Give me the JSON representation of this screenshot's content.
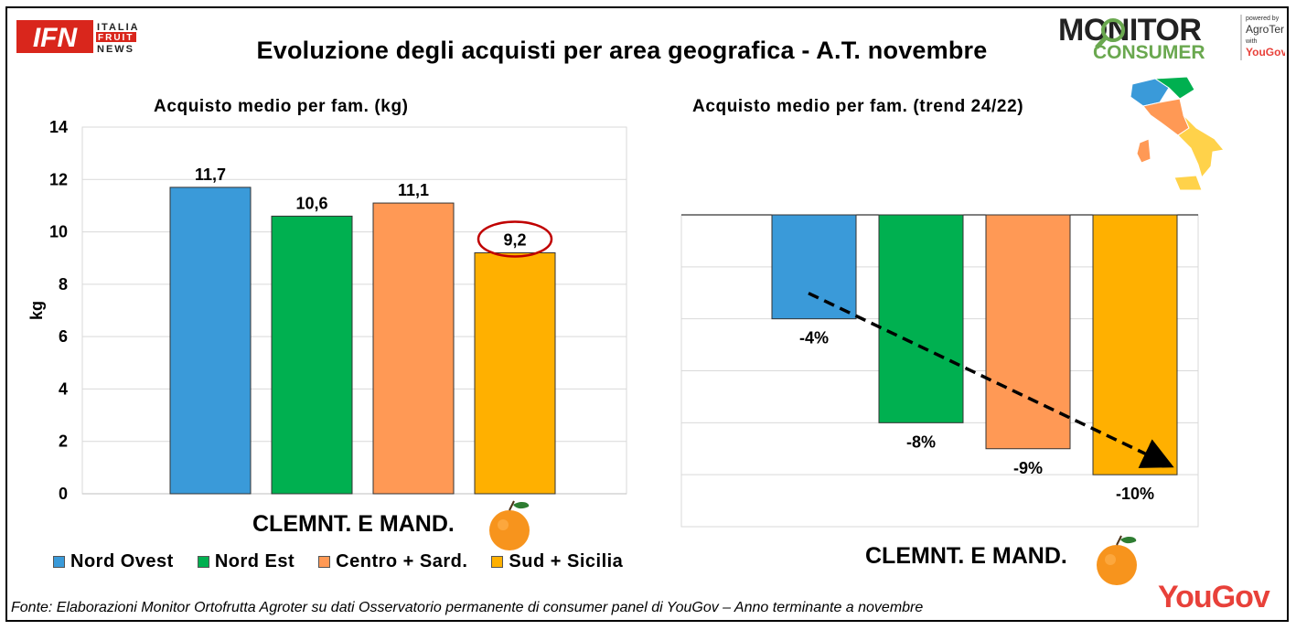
{
  "header": {
    "title": "Evoluzione degli acquisti per area geografica - A.T. novembre",
    "ifn_logo": {
      "mark": "IFN",
      "line1": "ITALIA",
      "line2": "FRUIT",
      "line3": "NEWS"
    },
    "monitor_logo": {
      "line1": "MONITOR",
      "line2": "CONSUMER",
      "powered": "powered by",
      "agroter": "AgroTer",
      "with": "with",
      "yougov": "YouGov"
    }
  },
  "colors": {
    "nord_ovest": "#3a9ad9",
    "nord_est": "#00b050",
    "centro_sard": "#ff9955",
    "sud_sicilia": "#ffb000",
    "highlight": "#c00000",
    "yougov": "#e8413a"
  },
  "legend": [
    "Nord Ovest",
    "Nord Est",
    "Centro + Sard.",
    "Sud + Sicilia"
  ],
  "footer": {
    "source": "Fonte: Elaborazioni Monitor Ortofrutta Agroter su dati Osservatorio permanente di consumer panel di YouGov – Anno terminante a novembre",
    "brand": "YouGov"
  },
  "chart_data": [
    {
      "type": "bar",
      "title": "Acquisto medio per fam. (kg)",
      "ylabel": "kg",
      "xlabel": "CLEMNT. E MAND.",
      "ylim": [
        0,
        14
      ],
      "yticks": [
        "0",
        "2",
        "4",
        "6",
        "8",
        "10",
        "12",
        "14"
      ],
      "grid": true,
      "series": [
        {
          "name": "Nord Ovest",
          "values": [
            11.7
          ],
          "label": "11,7"
        },
        {
          "name": "Nord Est",
          "values": [
            10.6
          ],
          "label": "10,6"
        },
        {
          "name": "Centro + Sard.",
          "values": [
            11.1
          ],
          "label": "11,1"
        },
        {
          "name": "Sud + Sicilia",
          "values": [
            9.2
          ],
          "label": "9,2",
          "highlighted": true
        }
      ]
    },
    {
      "type": "bar",
      "title": "Acquisto medio per fam. (trend 24/22)",
      "xlabel": "CLEMNT. E MAND.",
      "ylim": [
        -12,
        0
      ],
      "grid": true,
      "trend_arrow": true,
      "series": [
        {
          "name": "Nord Ovest",
          "values": [
            -4
          ],
          "label": "-4%"
        },
        {
          "name": "Nord Est",
          "values": [
            -8
          ],
          "label": "-8%"
        },
        {
          "name": "Centro + Sard.",
          "values": [
            -9
          ],
          "label": "-9%"
        },
        {
          "name": "Sud + Sicilia",
          "values": [
            -10
          ],
          "label": "-10%"
        }
      ]
    }
  ]
}
